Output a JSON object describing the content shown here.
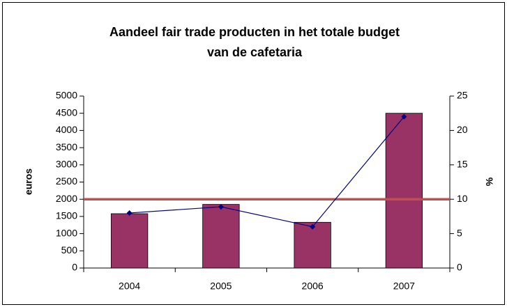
{
  "chart_data": {
    "type": "bar",
    "title": [
      "Aandeel fair trade producten in het totale budget",
      "van de cafetaria"
    ],
    "categories": [
      "2004",
      "2005",
      "2006",
      "2007"
    ],
    "series": [
      {
        "type": "bar",
        "color": "#993366",
        "values": [
          1580,
          1850,
          1330,
          4500
        ]
      },
      {
        "type": "line",
        "color": "#000080",
        "axis": "y2",
        "values": [
          8,
          8.9,
          6,
          22
        ]
      }
    ],
    "reference_lines": [
      {
        "value": 10,
        "axis": "y2",
        "color": "#c0504d"
      }
    ],
    "ylabel": "euros",
    "y2label": "%",
    "ylim": [
      0,
      5000
    ],
    "yticks": [
      0,
      500,
      1000,
      1500,
      2000,
      2500,
      3000,
      3500,
      4000,
      4500,
      5000
    ],
    "y2lim": [
      0,
      25
    ],
    "y2ticks": [
      0,
      5,
      10,
      15,
      20,
      25
    ]
  }
}
